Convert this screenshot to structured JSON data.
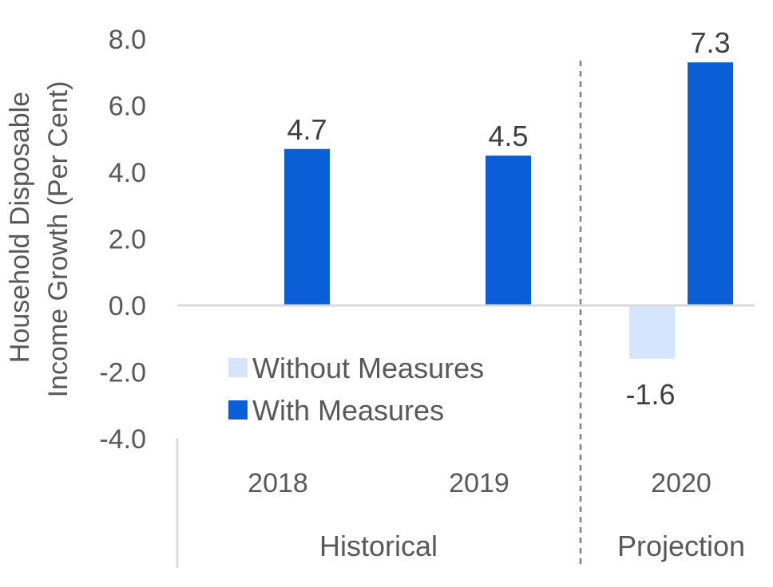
{
  "chart_data": {
    "type": "bar",
    "ylabel": [
      "Household Disposable",
      "Income Growth (Per Cent)"
    ],
    "ylim": [
      -4.0,
      8.0
    ],
    "yticks": [
      "8.0",
      "6.0",
      "4.0",
      "2.0",
      "0.0",
      "-2.0",
      "-4.0"
    ],
    "categories": [
      "2018",
      "2019",
      "2020"
    ],
    "groups": [
      {
        "label": "Historical",
        "categories": [
          "2018",
          "2019"
        ]
      },
      {
        "label": "Projection",
        "categories": [
          "2020"
        ]
      }
    ],
    "series": [
      {
        "name": "Without Measures",
        "color": "#d6e4fc",
        "values": [
          null,
          null,
          -1.6
        ],
        "labels": [
          "",
          "",
          "-1.6"
        ]
      },
      {
        "name": "With Measures",
        "color": "#0a5fd6",
        "values": [
          4.7,
          4.5,
          7.3
        ],
        "labels": [
          "4.7",
          "4.5",
          "7.3"
        ]
      }
    ],
    "legend_position": "lower-left inside plot",
    "grid": false
  }
}
